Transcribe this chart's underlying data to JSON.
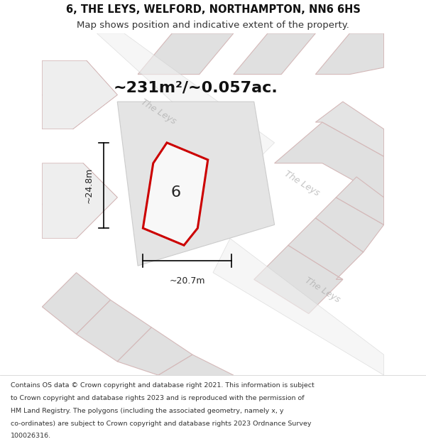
{
  "title": "6, THE LEYS, WELFORD, NORTHAMPTON, NN6 6HS",
  "subtitle": "Map shows position and indicative extent of the property.",
  "area_text": "~231m²/~0.057ac.",
  "dim_width": "~20.7m",
  "dim_height": "~24.8m",
  "plot_label": "6",
  "footer": "Contains OS data © Crown copyright and database right 2021. This information is subject to Crown copyright and database rights 2023 and is reproduced with the permission of HM Land Registry. The polygons (including the associated geometry, namely x, y co-ordinates) are subject to Crown copyright and database rights 2023 Ordnance Survey 100026316.",
  "bg_color": "#f5f5f5",
  "plot_bg": "#e8e8e8",
  "road_color": "#e8d8d8",
  "road_border_color": "#d0b0b0",
  "property_color": "#f0f0f0",
  "property_border": "#cc0000",
  "title_color": "#111111",
  "text_color": "#333333",
  "label_color": "#999999",
  "street_label_color": "#aaaaaa"
}
